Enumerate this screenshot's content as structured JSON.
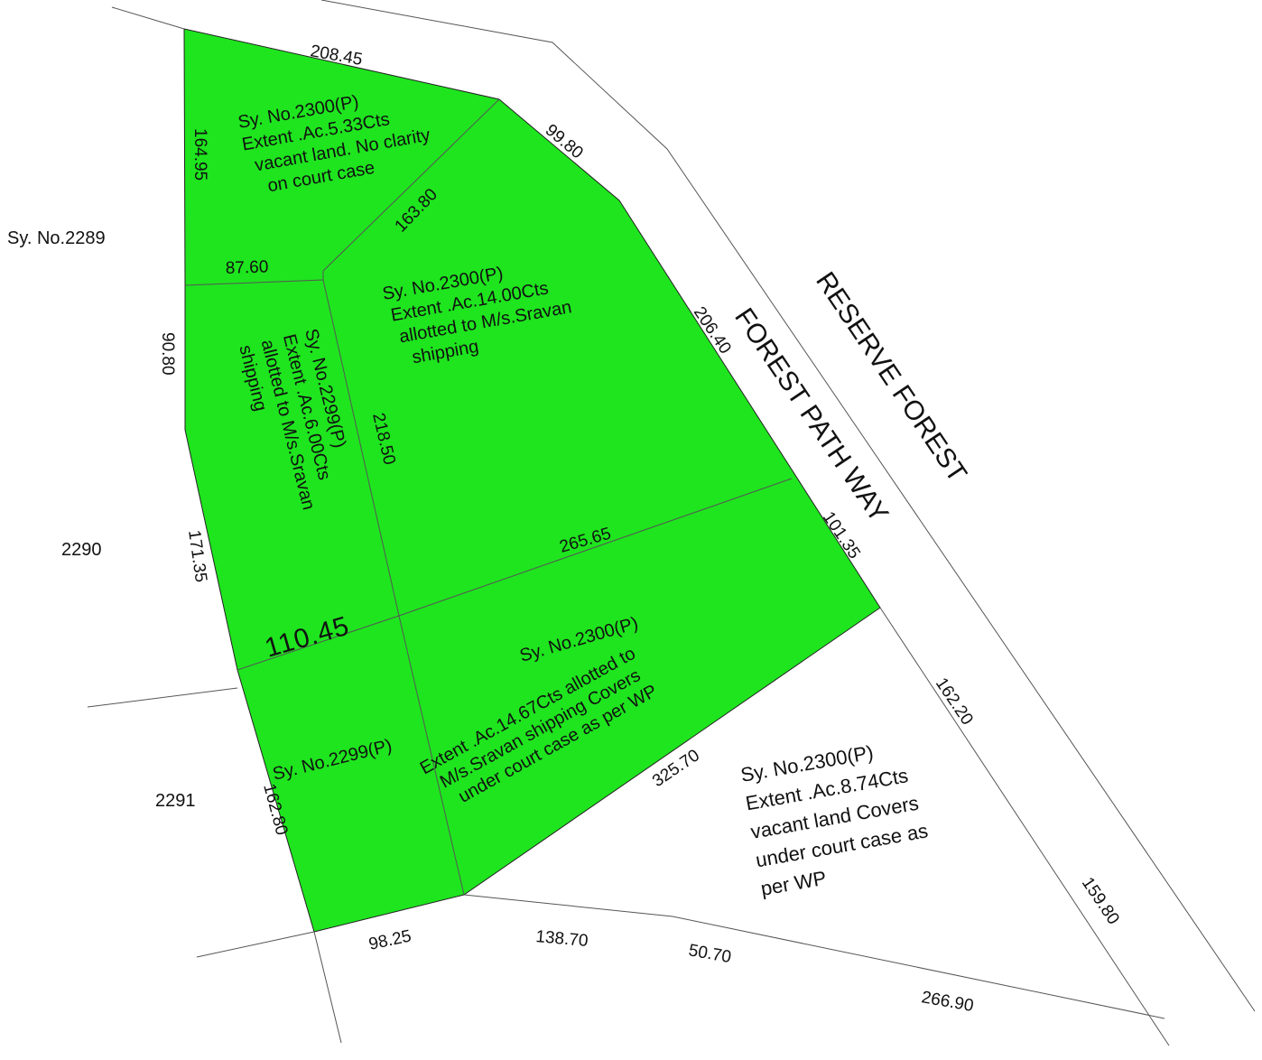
{
  "map": {
    "parcel_fill": "#1EE51E",
    "line_color": "#555555",
    "roads": {
      "reserve_forest": "RESERVE FOREST",
      "forest_path": "FOREST PATH WAY"
    },
    "neighbours": {
      "sy_2289": "Sy. No.2289",
      "sy_2290": "2290",
      "sy_2291": "2291"
    },
    "parcels": {
      "p1": [
        "Sy. No.2300(P)",
        "Extent .Ac.5.33Cts",
        "vacant land. No clarity",
        "on court case"
      ],
      "p2": [
        "Sy. No.2300(P)",
        "Extent .Ac.14.00Cts",
        "allotted to M/s.Sravan",
        "shipping"
      ],
      "p3": [
        "Sy. No.2299(P)",
        "Extent .Ac.6.00Cts",
        "allotted to M/s.Sravan",
        "shipping"
      ],
      "p4_title": "Sy. No.2300(P)",
      "p4": [
        "Extent .Ac.14.67Cts allotted to",
        "M/s.Sravan shipping Covers",
        "under court case as per WP"
      ],
      "p5": "Sy. No.2299(P)",
      "p6": [
        "Sy. No.2300(P)",
        "Extent .Ac.8.74Cts",
        "vacant land Covers",
        "under court case as",
        "per WP"
      ]
    },
    "dimensions": {
      "d208_45": "208.45",
      "d99_80": "99.80",
      "d164_95": "164.95",
      "d163_80": "163.80",
      "d87_60": "87.60",
      "d206_40": "206.40",
      "d90_80": "90.80",
      "d218_50": "218.50",
      "d265_65": "265.65",
      "d101_35": "101.35",
      "d171_35": "171.35",
      "d110_45": "110.45",
      "d162_20": "162.20",
      "d325_70": "325.70",
      "d162_80": "162.80",
      "d98_25": "98.25",
      "d138_70": "138.70",
      "d50_70": "50.70",
      "d159_80": "159.80",
      "d266_90": "266.90"
    }
  }
}
